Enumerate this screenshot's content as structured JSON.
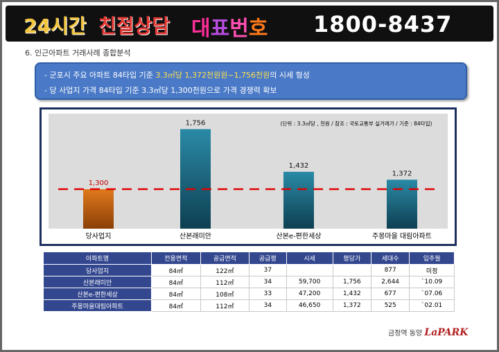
{
  "banner": {
    "part1": "24시간",
    "part2": "친절상담",
    "part3_chars": [
      "대",
      "표",
      "번",
      "호"
    ],
    "phone": "1800-8437"
  },
  "section_title": "6. 인근아파트 거래사례 종합분석",
  "summary": {
    "line1_prefix": "- 군포시 주요 아파트 84타입 기준 ",
    "line1_highlight": "3.3㎡당 1,372천원원~1,756천원",
    "line1_suffix": "의 시세 형성",
    "line2": "- 당 사업지 가격 84타입 기준 3.3㎡당 1,300천원으로 가격 경쟁력 확보"
  },
  "chart_data": {
    "type": "bar",
    "categories": [
      "당사업지",
      "산본래미안",
      "산본e-편한세상",
      "주몽마을 대림아파트"
    ],
    "values": [
      1300,
      1756,
      1432,
      1372
    ],
    "value_labels": [
      "1,300",
      "1,756",
      "1,432",
      "1,372"
    ],
    "reference_line": 1300,
    "note": "(단위 : 3.3㎡당 , 천원 / 참조 : 국토교통부 실거래가  / 기준 : 84타입)",
    "ylim": [
      1000,
      1800
    ],
    "colors": {
      "highlight": "#c9630e",
      "default": "#1f6f86",
      "line": "#e00000",
      "highlight_label": "#c00000"
    }
  },
  "table": {
    "headers": [
      "아파트명",
      "전용면적",
      "공급면적",
      "공급평",
      "시세",
      "평당가",
      "세대수",
      "입주월"
    ],
    "rows": [
      [
        "당사업지",
        "84㎡",
        "122㎡",
        "37",
        "",
        "",
        "877",
        "미정"
      ],
      [
        "산본래미안",
        "84㎡",
        "112㎡",
        "34",
        "59,700",
        "1,756",
        "2,644",
        "`10.09"
      ],
      [
        "산본e-편한세상",
        "84㎡",
        "108㎡",
        "33",
        "47,200",
        "1,432",
        "677",
        "`07.06"
      ],
      [
        "주몽마을대림아파트",
        "84㎡",
        "112㎡",
        "34",
        "46,650",
        "1,372",
        "525",
        "`02.01"
      ]
    ]
  },
  "footer": {
    "text": "금정역 동양 ",
    "brand": "LaPARK"
  }
}
